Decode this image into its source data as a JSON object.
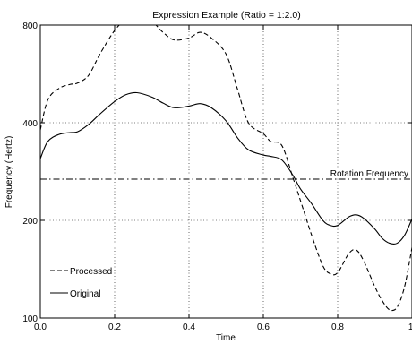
{
  "chart_data": {
    "type": "line",
    "title": "Expression Example (Ratio = 1:2.0)",
    "xlabel": "Time",
    "ylabel": "Frequency (Hertz)",
    "xlim": [
      0,
      1
    ],
    "ylim": [
      100,
      800
    ],
    "yscale": "log",
    "grid": true,
    "legend_position": "lower-left",
    "x_ticks": [
      0,
      0.2,
      0.4,
      0.6,
      0.8,
      1
    ],
    "x_tick_labels": [
      "0.0",
      "0.2",
      "0.4",
      "0.6",
      "0.8",
      "1."
    ],
    "y_ticks": [
      100,
      200,
      400,
      800
    ],
    "y_tick_labels": [
      "100",
      "200",
      "400",
      "800"
    ],
    "series": [
      {
        "name": "Processed",
        "style": "dashed",
        "x": [
          0,
          0.02,
          0.05,
          0.08,
          0.1,
          0.13,
          0.16,
          0.2,
          0.23,
          0.26,
          0.3,
          0.33,
          0.36,
          0.4,
          0.43,
          0.46,
          0.5,
          0.53,
          0.56,
          0.6,
          0.62,
          0.65,
          0.68,
          0.7,
          0.73,
          0.76,
          0.78,
          0.8,
          0.83,
          0.85,
          0.87,
          0.9,
          0.92,
          0.94,
          0.96,
          0.98,
          1.0
        ],
        "y": [
          380,
          470,
          510,
          525,
          530,
          560,
          650,
          770,
          830,
          850,
          820,
          760,
          720,
          730,
          760,
          730,
          650,
          510,
          400,
          370,
          350,
          340,
          270,
          230,
          180,
          145,
          137,
          138,
          158,
          162,
          150,
          125,
          113,
          106,
          108,
          125,
          165
        ]
      },
      {
        "name": "Original",
        "style": "solid",
        "x": [
          0,
          0.02,
          0.05,
          0.08,
          0.1,
          0.13,
          0.16,
          0.2,
          0.23,
          0.26,
          0.3,
          0.33,
          0.36,
          0.4,
          0.43,
          0.46,
          0.5,
          0.53,
          0.56,
          0.6,
          0.62,
          0.65,
          0.68,
          0.7,
          0.73,
          0.76,
          0.78,
          0.8,
          0.83,
          0.85,
          0.87,
          0.9,
          0.92,
          0.94,
          0.96,
          0.98,
          1.0
        ],
        "y": [
          310,
          350,
          368,
          373,
          375,
          395,
          425,
          465,
          488,
          495,
          480,
          460,
          445,
          450,
          458,
          445,
          405,
          360,
          330,
          318,
          315,
          307,
          275,
          250,
          225,
          200,
          193,
          193,
          205,
          208,
          203,
          188,
          176,
          170,
          170,
          180,
          202
        ]
      }
    ],
    "reference_lines": [
      {
        "label": "Rotation Frequency",
        "y": 268,
        "style": "dashdot"
      }
    ]
  }
}
